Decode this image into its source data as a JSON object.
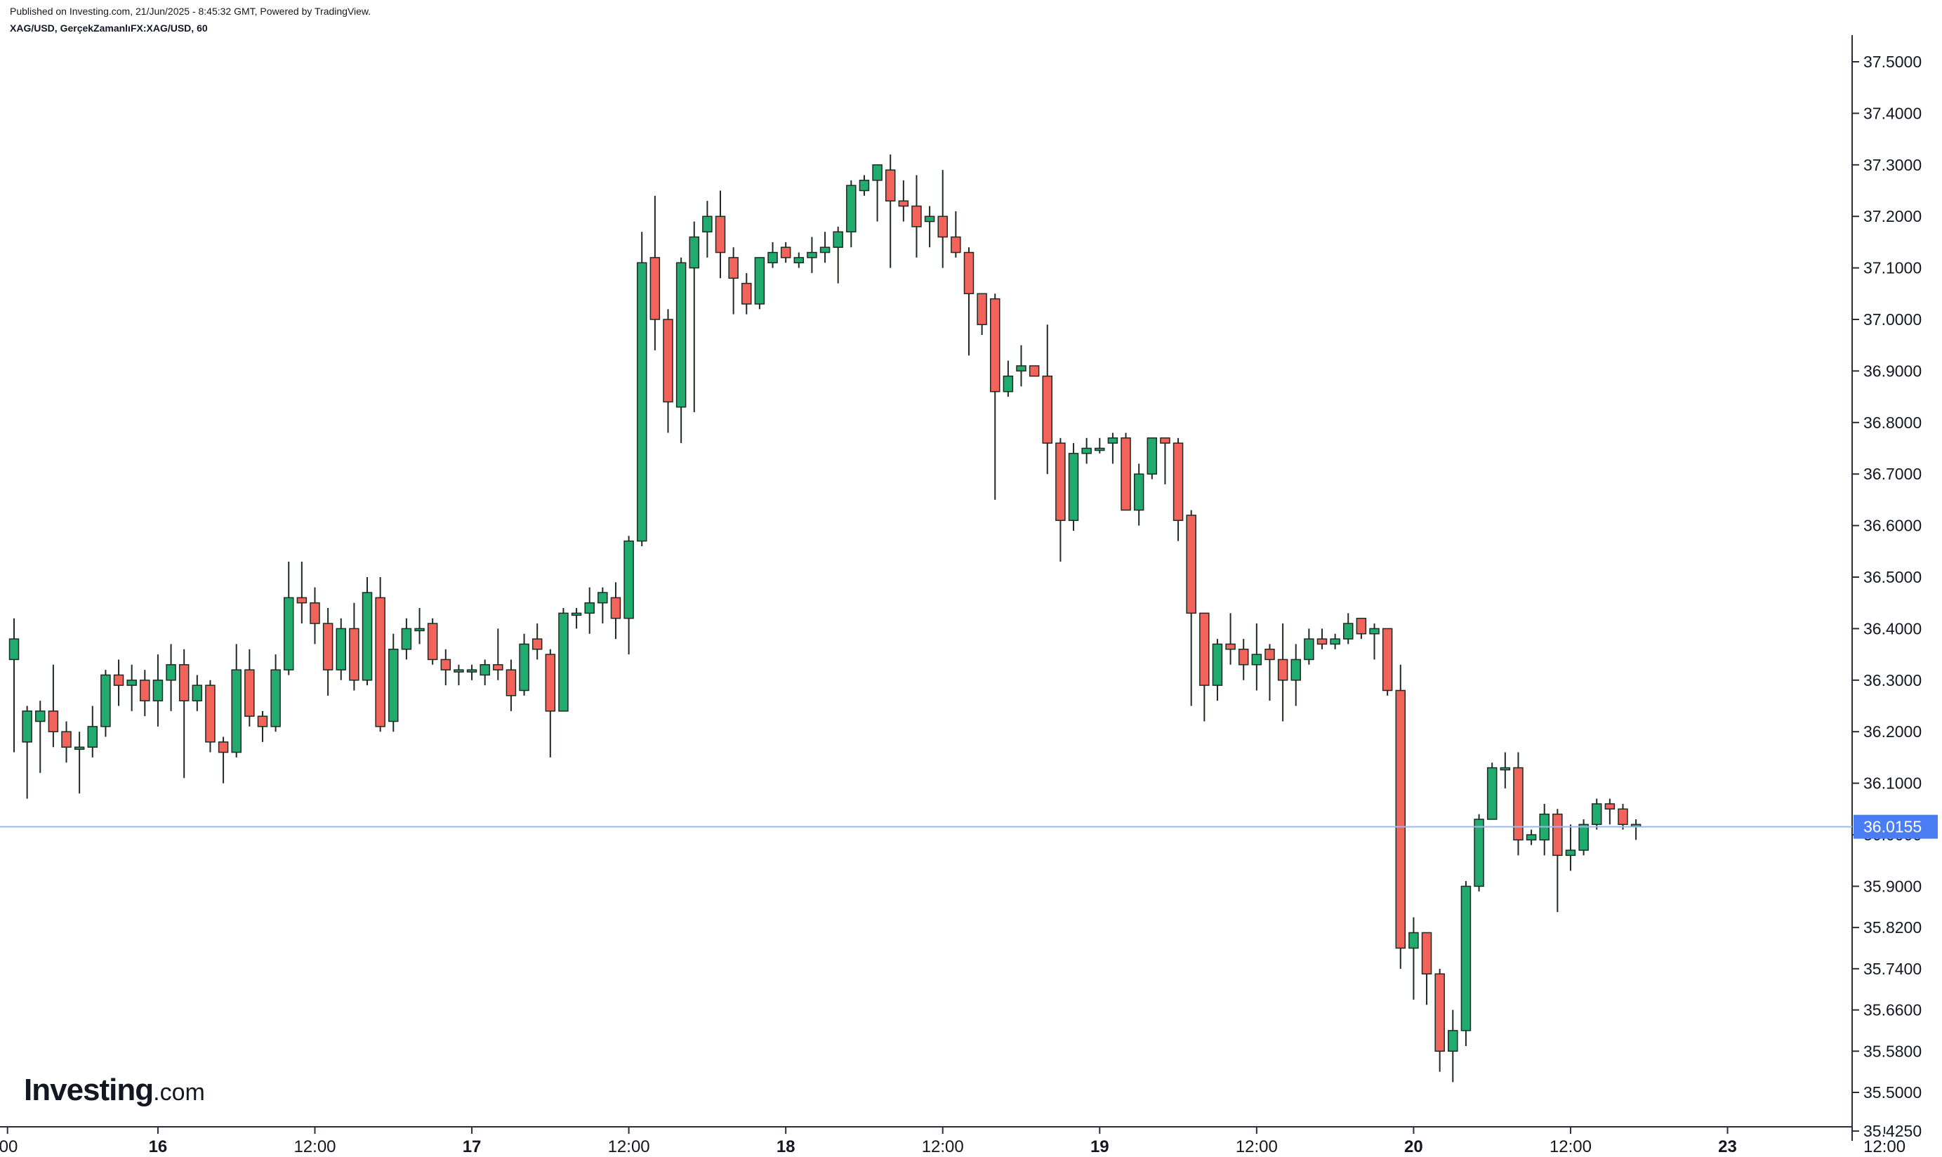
{
  "header": {
    "published": "Published on Investing.com, 21/Jun/2025 - 8:45:32 GMT, Powered by TradingView.",
    "symbol": "XAG/USD, GerçekZamanlıFX:XAG/USD, 60"
  },
  "brand": {
    "name": "Investing",
    "suffix": ".com"
  },
  "colors": {
    "up": "#22AB6F",
    "down": "#F2635C",
    "wick": "#1E2A22",
    "price_line": "#9DB7F0",
    "price_badge": "#4A7CF3"
  },
  "chart_data": {
    "type": "candlestick",
    "interval": "60",
    "current_price": 36.0155,
    "current_price_label": "36.0155",
    "ylim": [
      35.4,
      37.55
    ],
    "yticks": [
      {
        "value": 37.5,
        "label": "37.5000"
      },
      {
        "value": 37.4,
        "label": "37.4000"
      },
      {
        "value": 37.3,
        "label": "37.3000"
      },
      {
        "value": 37.2,
        "label": "37.2000"
      },
      {
        "value": 37.1,
        "label": "37.1000"
      },
      {
        "value": 37.0,
        "label": "37.0000"
      },
      {
        "value": 36.9,
        "label": "36.9000"
      },
      {
        "value": 36.8,
        "label": "36.8000"
      },
      {
        "value": 36.7,
        "label": "36.7000"
      },
      {
        "value": 36.6,
        "label": "36.6000"
      },
      {
        "value": 36.5,
        "label": "36.5000"
      },
      {
        "value": 36.4,
        "label": "36.4000"
      },
      {
        "value": 36.3,
        "label": "36.3000"
      },
      {
        "value": 36.2,
        "label": "36.2000"
      },
      {
        "value": 36.1,
        "label": "36.1000"
      },
      {
        "value": 36.0,
        "label": "36.0000"
      },
      {
        "value": 35.9,
        "label": "35.9000"
      },
      {
        "value": 35.82,
        "label": "35.8200"
      },
      {
        "value": 35.74,
        "label": "35.7400"
      },
      {
        "value": 35.66,
        "label": "35.6600"
      },
      {
        "value": 35.58,
        "label": "35.5800"
      },
      {
        "value": 35.5,
        "label": "35.5000"
      },
      {
        "value": 35.425,
        "label": "35.4250"
      }
    ],
    "xticks": [
      {
        "index": -0.5,
        "label": "00"
      },
      {
        "index": 11,
        "label": "16"
      },
      {
        "index": 23,
        "label": "12:00"
      },
      {
        "index": 35,
        "label": "17"
      },
      {
        "index": 47,
        "label": "12:00"
      },
      {
        "index": 59,
        "label": "18"
      },
      {
        "index": 71,
        "label": "12:00"
      },
      {
        "index": 83,
        "label": "19"
      },
      {
        "index": 95,
        "label": "12:00"
      },
      {
        "index": 107,
        "label": "20"
      },
      {
        "index": 119,
        "label": "12:00"
      },
      {
        "index": 131,
        "label": "23"
      },
      {
        "index": 143,
        "label": "12:00"
      }
    ],
    "candles": [
      [
        36.34,
        36.38,
        36.42,
        36.16
      ],
      [
        36.18,
        36.24,
        36.25,
        36.07
      ],
      [
        36.22,
        36.24,
        36.26,
        36.12
      ],
      [
        36.24,
        36.2,
        36.33,
        36.17
      ],
      [
        36.2,
        36.17,
        36.22,
        36.14
      ],
      [
        36.17,
        36.17,
        36.2,
        36.08
      ],
      [
        36.17,
        36.21,
        36.25,
        36.15
      ],
      [
        36.21,
        36.31,
        36.32,
        36.19
      ],
      [
        36.31,
        36.29,
        36.34,
        36.25
      ],
      [
        36.29,
        36.3,
        36.33,
        36.24
      ],
      [
        36.3,
        36.26,
        36.32,
        36.23
      ],
      [
        36.26,
        36.3,
        36.35,
        36.21
      ],
      [
        36.3,
        36.33,
        36.37,
        36.24
      ],
      [
        36.33,
        36.26,
        36.36,
        36.11
      ],
      [
        36.26,
        36.29,
        36.31,
        36.24
      ],
      [
        36.29,
        36.18,
        36.3,
        36.16
      ],
      [
        36.18,
        36.16,
        36.19,
        36.1
      ],
      [
        36.16,
        36.32,
        36.37,
        36.15
      ],
      [
        36.32,
        36.23,
        36.36,
        36.21
      ],
      [
        36.23,
        36.21,
        36.24,
        36.18
      ],
      [
        36.21,
        36.32,
        36.35,
        36.2
      ],
      [
        36.32,
        36.46,
        36.53,
        36.31
      ],
      [
        36.46,
        36.45,
        36.53,
        36.41
      ],
      [
        36.45,
        36.41,
        36.48,
        36.37
      ],
      [
        36.41,
        36.32,
        36.44,
        36.27
      ],
      [
        36.32,
        36.4,
        36.42,
        36.3
      ],
      [
        36.4,
        36.3,
        36.45,
        36.28
      ],
      [
        36.3,
        36.47,
        36.5,
        36.29
      ],
      [
        36.46,
        36.21,
        36.5,
        36.2
      ],
      [
        36.22,
        36.36,
        36.39,
        36.2
      ],
      [
        36.36,
        36.4,
        36.42,
        36.34
      ],
      [
        36.4,
        36.4,
        36.44,
        36.37
      ],
      [
        36.41,
        36.34,
        36.42,
        36.33
      ],
      [
        36.34,
        36.32,
        36.36,
        36.29
      ],
      [
        36.32,
        36.32,
        36.33,
        36.29
      ],
      [
        36.32,
        36.32,
        36.33,
        36.3
      ],
      [
        36.31,
        36.33,
        36.34,
        36.29
      ],
      [
        36.33,
        36.32,
        36.4,
        36.3
      ],
      [
        36.32,
        36.27,
        36.34,
        36.24
      ],
      [
        36.28,
        36.37,
        36.39,
        36.27
      ],
      [
        36.38,
        36.36,
        36.41,
        36.34
      ],
      [
        36.35,
        36.24,
        36.36,
        36.15
      ],
      [
        36.24,
        36.43,
        36.44,
        36.24
      ],
      [
        36.43,
        36.43,
        36.44,
        36.4
      ],
      [
        36.43,
        36.45,
        36.48,
        36.39
      ],
      [
        36.45,
        36.47,
        36.48,
        36.41
      ],
      [
        36.46,
        36.42,
        36.49,
        36.38
      ],
      [
        36.42,
        36.57,
        36.58,
        36.35
      ],
      [
        36.57,
        37.11,
        37.17,
        36.56
      ],
      [
        37.12,
        37.0,
        37.24,
        36.94
      ],
      [
        37.0,
        36.84,
        37.02,
        36.78
      ],
      [
        36.83,
        37.11,
        37.12,
        36.76
      ],
      [
        37.1,
        37.16,
        37.19,
        36.82
      ],
      [
        37.17,
        37.2,
        37.23,
        37.12
      ],
      [
        37.2,
        37.13,
        37.25,
        37.08
      ],
      [
        37.12,
        37.08,
        37.14,
        37.01
      ],
      [
        37.07,
        37.03,
        37.09,
        37.01
      ],
      [
        37.03,
        37.12,
        37.12,
        37.02
      ],
      [
        37.11,
        37.13,
        37.15,
        37.1
      ],
      [
        37.14,
        37.12,
        37.15,
        37.11
      ],
      [
        37.11,
        37.12,
        37.13,
        37.1
      ],
      [
        37.12,
        37.13,
        37.16,
        37.09
      ],
      [
        37.13,
        37.14,
        37.17,
        37.11
      ],
      [
        37.14,
        37.17,
        37.18,
        37.07
      ],
      [
        37.17,
        37.26,
        37.27,
        37.14
      ],
      [
        37.25,
        37.27,
        37.28,
        37.24
      ],
      [
        37.27,
        37.3,
        37.3,
        37.19
      ],
      [
        37.29,
        37.23,
        37.32,
        37.1
      ],
      [
        37.23,
        37.22,
        37.27,
        37.19
      ],
      [
        37.22,
        37.18,
        37.28,
        37.12
      ],
      [
        37.19,
        37.2,
        37.22,
        37.14
      ],
      [
        37.2,
        37.16,
        37.29,
        37.1
      ],
      [
        37.16,
        37.13,
        37.21,
        37.12
      ],
      [
        37.13,
        37.05,
        37.14,
        36.93
      ],
      [
        37.05,
        36.99,
        37.05,
        36.97
      ],
      [
        37.04,
        36.86,
        37.05,
        36.65
      ],
      [
        36.86,
        36.89,
        36.92,
        36.85
      ],
      [
        36.9,
        36.91,
        36.95,
        36.87
      ],
      [
        36.91,
        36.89,
        36.91,
        36.89
      ],
      [
        36.89,
        36.76,
        36.99,
        36.7
      ],
      [
        36.76,
        36.61,
        36.77,
        36.53
      ],
      [
        36.61,
        36.74,
        36.76,
        36.59
      ],
      [
        36.74,
        36.75,
        36.77,
        36.72
      ],
      [
        36.75,
        36.75,
        36.77,
        36.74
      ],
      [
        36.76,
        36.77,
        36.78,
        36.72
      ],
      [
        36.77,
        36.63,
        36.78,
        36.63
      ],
      [
        36.63,
        36.7,
        36.72,
        36.6
      ],
      [
        36.7,
        36.77,
        36.77,
        36.69
      ],
      [
        36.77,
        36.76,
        36.77,
        36.68
      ],
      [
        36.76,
        36.61,
        36.77,
        36.57
      ],
      [
        36.62,
        36.43,
        36.63,
        36.25
      ],
      [
        36.43,
        36.29,
        36.43,
        36.22
      ],
      [
        36.29,
        36.37,
        36.38,
        36.26
      ],
      [
        36.37,
        36.36,
        36.43,
        36.33
      ],
      [
        36.36,
        36.33,
        36.38,
        36.3
      ],
      [
        36.33,
        36.35,
        36.41,
        36.28
      ],
      [
        36.36,
        36.34,
        36.37,
        36.26
      ],
      [
        36.34,
        36.3,
        36.41,
        36.22
      ],
      [
        36.3,
        36.34,
        36.37,
        36.25
      ],
      [
        36.34,
        36.38,
        36.4,
        36.33
      ],
      [
        36.38,
        36.37,
        36.4,
        36.36
      ],
      [
        36.37,
        36.38,
        36.39,
        36.36
      ],
      [
        36.38,
        36.41,
        36.43,
        36.37
      ],
      [
        36.42,
        36.39,
        36.42,
        36.38
      ],
      [
        36.39,
        36.4,
        36.41,
        36.34
      ],
      [
        36.4,
        36.28,
        36.4,
        36.27
      ],
      [
        36.28,
        35.78,
        36.33,
        35.74
      ],
      [
        35.78,
        35.81,
        35.84,
        35.68
      ],
      [
        35.81,
        35.73,
        35.81,
        35.67
      ],
      [
        35.73,
        35.58,
        35.74,
        35.54
      ],
      [
        35.58,
        35.62,
        35.66,
        35.52
      ],
      [
        35.62,
        35.9,
        35.91,
        35.59
      ],
      [
        35.9,
        36.03,
        36.04,
        35.89
      ],
      [
        36.03,
        36.13,
        36.14,
        36.03
      ],
      [
        36.13,
        36.13,
        36.16,
        36.09
      ],
      [
        36.13,
        35.99,
        36.16,
        35.96
      ],
      [
        35.99,
        36.0,
        36.01,
        35.98
      ],
      [
        35.99,
        36.04,
        36.06,
        35.96
      ],
      [
        36.04,
        35.96,
        36.05,
        35.85
      ],
      [
        35.96,
        35.97,
        36.02,
        35.93
      ],
      [
        35.97,
        36.02,
        36.03,
        35.96
      ],
      [
        36.02,
        36.06,
        36.07,
        36.01
      ],
      [
        36.06,
        36.05,
        36.07,
        36.02
      ],
      [
        36.05,
        36.02,
        36.06,
        36.01
      ],
      [
        36.02,
        36.02,
        36.03,
        35.99
      ]
    ]
  }
}
